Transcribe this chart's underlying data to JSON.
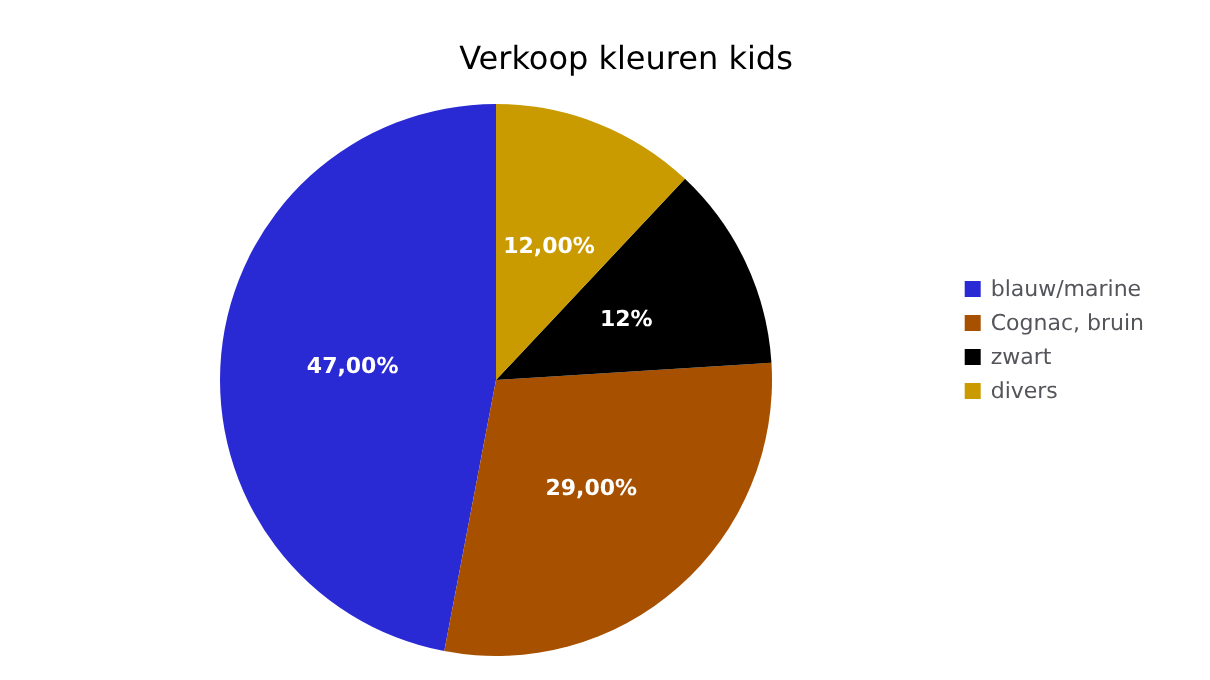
{
  "chart_data": {
    "type": "pie",
    "title": "Verkoop kleuren kids",
    "categories": [
      "blauw/marine",
      "Cognac, bruin",
      "zwart",
      "divers"
    ],
    "values": [
      47,
      29,
      12,
      12
    ],
    "colors": [
      "#2a2ad4",
      "#a65000",
      "#000000",
      "#c99b00"
    ],
    "value_labels": [
      "47,00%",
      "29,00%",
      "12%",
      "12,00%"
    ],
    "legend": "right"
  }
}
